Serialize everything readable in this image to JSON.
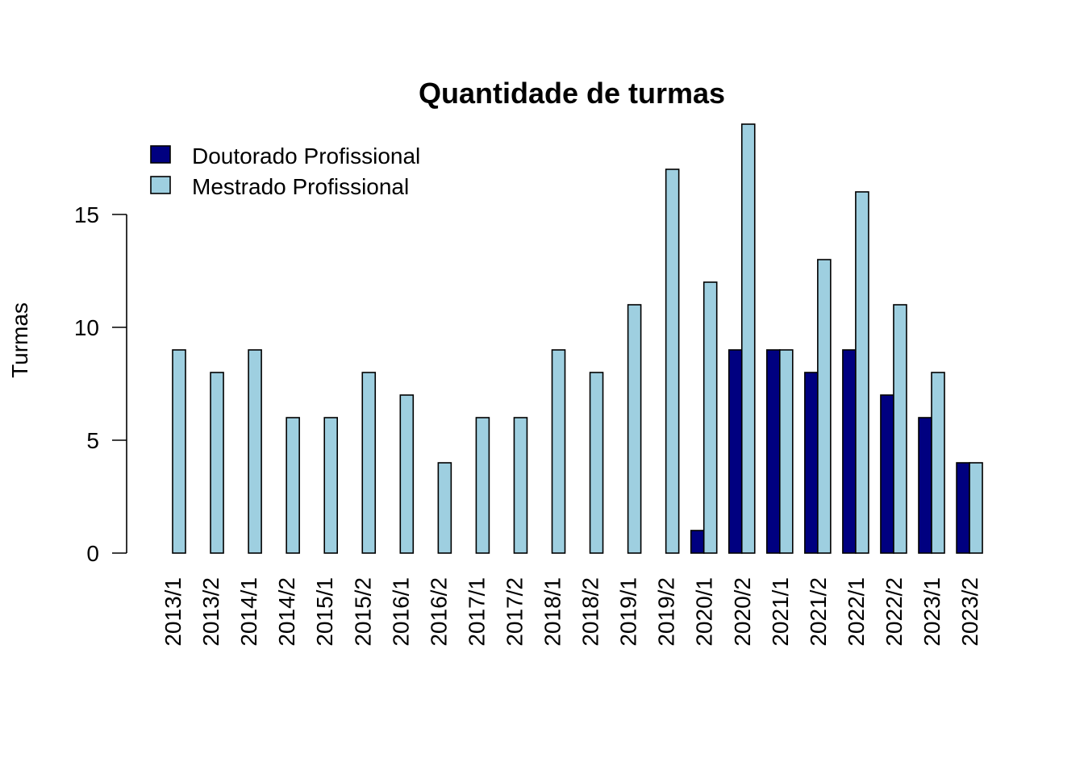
{
  "chart_data": {
    "type": "bar",
    "title": "Quantidade de turmas",
    "xlabel": "",
    "ylabel": "Turmas",
    "ylim": [
      0,
      19
    ],
    "yticks": [
      0,
      5,
      10,
      15
    ],
    "grid": false,
    "legend_position": "top-left",
    "categories": [
      "2013/1",
      "2013/2",
      "2014/1",
      "2014/2",
      "2015/1",
      "2015/2",
      "2016/1",
      "2016/2",
      "2017/1",
      "2017/2",
      "2018/1",
      "2018/2",
      "2019/1",
      "2019/2",
      "2020/1",
      "2020/2",
      "2021/1",
      "2021/2",
      "2022/1",
      "2022/2",
      "2023/1",
      "2023/2"
    ],
    "series": [
      {
        "name": "Doutorado Profissional",
        "color": "#000080",
        "values": [
          0,
          0,
          0,
          0,
          0,
          0,
          0,
          0,
          0,
          0,
          0,
          0,
          0,
          0,
          1,
          9,
          9,
          8,
          9,
          7,
          6,
          4
        ]
      },
      {
        "name": "Mestrado Profissional",
        "color": "#9ecfe0",
        "values": [
          9,
          8,
          9,
          6,
          6,
          8,
          7,
          4,
          6,
          6,
          9,
          8,
          11,
          17,
          12,
          19,
          9,
          13,
          16,
          11,
          8,
          4
        ]
      }
    ]
  }
}
